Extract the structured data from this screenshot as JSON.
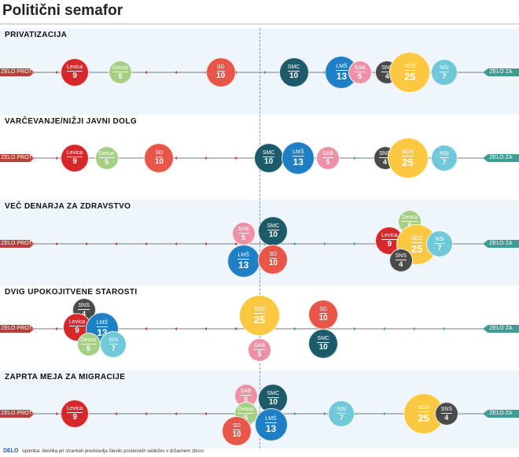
{
  "title": "Politični semafor",
  "labels": {
    "left": "ZELO PROTI",
    "right": "ZELO ZA"
  },
  "footer": {
    "logo": "DELO",
    "note": "opomba: številka pri strankah predstavlja število poslanskih sedežev v državnem zboru"
  },
  "colors": {
    "Levica": "#d6282b",
    "Desus": "#a4cf85",
    "SD": "#e8564a",
    "SMC": "#1d5b6b",
    "LMŠ": "#1f7fc4",
    "SAB": "#ee91a7",
    "SNS": "#4a4a4a",
    "SDS": "#fdc841",
    "NSi": "#70c8d8"
  },
  "chart_data": [
    {
      "type": "scatter",
      "title": "PRIVATIZACIJA",
      "xlim": [
        -1,
        1
      ],
      "parties": [
        {
          "name": "Levica",
          "seats": 9,
          "x": -0.81,
          "dy": 0
        },
        {
          "name": "Desus",
          "seats": 5,
          "x": -0.61,
          "dy": 0
        },
        {
          "name": "SD",
          "seats": 10,
          "x": -0.17,
          "dy": 0
        },
        {
          "name": "SMC",
          "seats": 10,
          "x": 0.15,
          "dy": 0
        },
        {
          "name": "LMŠ",
          "seats": 13,
          "x": 0.36,
          "dy": 0
        },
        {
          "name": "SAB",
          "seats": 5,
          "x": 0.44,
          "dy": 0
        },
        {
          "name": "SNS",
          "seats": 4,
          "x": 0.56,
          "dy": 0
        },
        {
          "name": "SDS",
          "seats": 25,
          "x": 0.66,
          "dy": 0
        },
        {
          "name": "NSi",
          "seats": 7,
          "x": 0.81,
          "dy": 0
        }
      ]
    },
    {
      "type": "scatter",
      "title": "VARČEVANJE/NIŽJI JAVNI DOLG",
      "xlim": [
        -1,
        1
      ],
      "parties": [
        {
          "name": "Levica",
          "seats": 9,
          "x": -0.81,
          "dy": 0
        },
        {
          "name": "Desus",
          "seats": 5,
          "x": -0.67,
          "dy": 0
        },
        {
          "name": "SD",
          "seats": 10,
          "x": -0.44,
          "dy": 0
        },
        {
          "name": "SMC",
          "seats": 10,
          "x": 0.04,
          "dy": 0
        },
        {
          "name": "LMŠ",
          "seats": 13,
          "x": 0.17,
          "dy": 0
        },
        {
          "name": "SAB",
          "seats": 5,
          "x": 0.3,
          "dy": 0
        },
        {
          "name": "SNS",
          "seats": 4,
          "x": 0.55,
          "dy": 0
        },
        {
          "name": "SDS",
          "seats": 25,
          "x": 0.65,
          "dy": 0
        },
        {
          "name": "NSi",
          "seats": 7,
          "x": 0.81,
          "dy": 0
        }
      ]
    },
    {
      "type": "scatter",
      "title": "VEČ DENARJA ZA ZDRAVSTVO",
      "xlim": [
        -1,
        1
      ],
      "parties": [
        {
          "name": "SAB",
          "seats": 5,
          "x": -0.07,
          "dy": -13
        },
        {
          "name": "LMŠ",
          "seats": 13,
          "x": -0.07,
          "dy": 22
        },
        {
          "name": "SMC",
          "seats": 10,
          "x": 0.06,
          "dy": -16
        },
        {
          "name": "SD",
          "seats": 10,
          "x": 0.06,
          "dy": 20
        },
        {
          "name": "Levica",
          "seats": 9,
          "x": 0.57,
          "dy": -4
        },
        {
          "name": "Desus",
          "seats": 5,
          "x": 0.66,
          "dy": -28
        },
        {
          "name": "SDS",
          "seats": 25,
          "x": 0.69,
          "dy": 1
        },
        {
          "name": "NSi",
          "seats": 7,
          "x": 0.79,
          "dy": 0
        },
        {
          "name": "SNS",
          "seats": 4,
          "x": 0.62,
          "dy": 21
        }
      ]
    },
    {
      "type": "scatter",
      "title": "DVIG UPOKOJITVENE STAROSTI",
      "xlim": [
        -1,
        1
      ],
      "parties": [
        {
          "name": "SNS",
          "seats": 4,
          "x": -0.77,
          "dy": -24
        },
        {
          "name": "Levica",
          "seats": 9,
          "x": -0.8,
          "dy": -2
        },
        {
          "name": "LMŠ",
          "seats": 13,
          "x": -0.69,
          "dy": 0
        },
        {
          "name": "Desus",
          "seats": 5,
          "x": -0.75,
          "dy": 20
        },
        {
          "name": "NSi",
          "seats": 7,
          "x": -0.64,
          "dy": 20
        },
        {
          "name": "SDS",
          "seats": 25,
          "x": 0.0,
          "dy": -17
        },
        {
          "name": "SAB",
          "seats": 5,
          "x": 0.0,
          "dy": 27
        },
        {
          "name": "SD",
          "seats": 10,
          "x": 0.28,
          "dy": -18
        },
        {
          "name": "SMC",
          "seats": 10,
          "x": 0.28,
          "dy": 19
        }
      ]
    },
    {
      "type": "scatter",
      "title": "ZAPRTA MEJA ZA MIGRACIJE",
      "xlim": [
        -1,
        1
      ],
      "parties": [
        {
          "name": "Levica",
          "seats": 9,
          "x": -0.81,
          "dy": 0
        },
        {
          "name": "SAB",
          "seats": 5,
          "x": -0.06,
          "dy": -23
        },
        {
          "name": "SMC",
          "seats": 10,
          "x": 0.06,
          "dy": -19
        },
        {
          "name": "Desus",
          "seats": 5,
          "x": -0.06,
          "dy": 0
        },
        {
          "name": "SD",
          "seats": 10,
          "x": -0.1,
          "dy": 22
        },
        {
          "name": "LMŠ",
          "seats": 13,
          "x": 0.05,
          "dy": 14
        },
        {
          "name": "NSi",
          "seats": 7,
          "x": 0.36,
          "dy": 0
        },
        {
          "name": "SDS",
          "seats": 25,
          "x": 0.72,
          "dy": 0
        },
        {
          "name": "SNS",
          "seats": 4,
          "x": 0.82,
          "dy": 0
        }
      ]
    }
  ]
}
